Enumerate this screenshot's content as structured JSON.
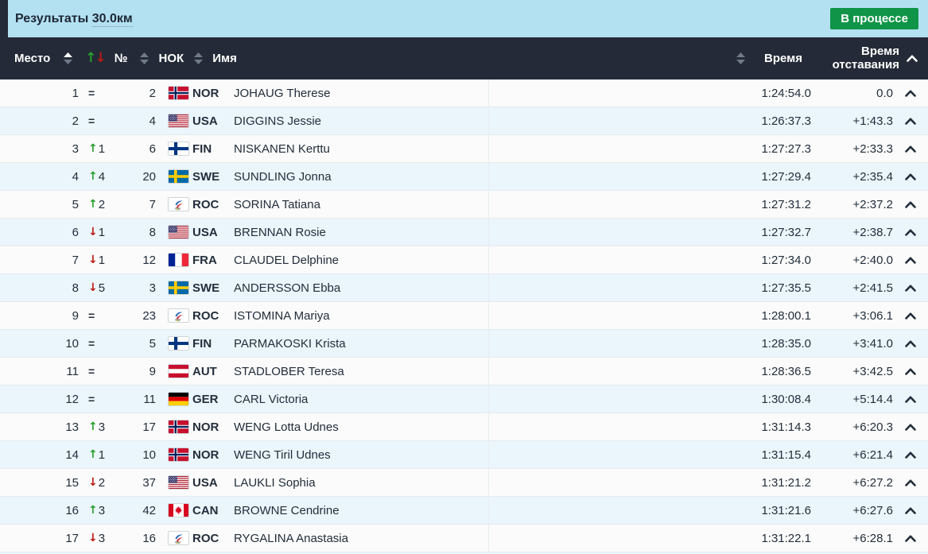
{
  "topbar": {
    "title": "Результаты",
    "distance": "30.0км",
    "status": "В процессе"
  },
  "table": {
    "header": {
      "place": "Место",
      "bib": "№",
      "noc": "НОК",
      "name": "Имя",
      "time": "Время",
      "gap": "Время отставания"
    },
    "rows": [
      {
        "place": "1",
        "change_dir": "same",
        "change_val": "",
        "bib": "2",
        "noc": "NOR",
        "name": "JOHAUG Therese",
        "time": "1:24:54.0",
        "gap": "0.0"
      },
      {
        "place": "2",
        "change_dir": "same",
        "change_val": "",
        "bib": "4",
        "noc": "USA",
        "name": "DIGGINS Jessie",
        "time": "1:26:37.3",
        "gap": "+1:43.3"
      },
      {
        "place": "3",
        "change_dir": "up",
        "change_val": "1",
        "bib": "6",
        "noc": "FIN",
        "name": "NISKANEN Kerttu",
        "time": "1:27:27.3",
        "gap": "+2:33.3"
      },
      {
        "place": "4",
        "change_dir": "up",
        "change_val": "4",
        "bib": "20",
        "noc": "SWE",
        "name": "SUNDLING Jonna",
        "time": "1:27:29.4",
        "gap": "+2:35.4"
      },
      {
        "place": "5",
        "change_dir": "up",
        "change_val": "2",
        "bib": "7",
        "noc": "ROC",
        "name": "SORINA Tatiana",
        "time": "1:27:31.2",
        "gap": "+2:37.2"
      },
      {
        "place": "6",
        "change_dir": "down",
        "change_val": "1",
        "bib": "8",
        "noc": "USA",
        "name": "BRENNAN Rosie",
        "time": "1:27:32.7",
        "gap": "+2:38.7"
      },
      {
        "place": "7",
        "change_dir": "down",
        "change_val": "1",
        "bib": "12",
        "noc": "FRA",
        "name": "CLAUDEL Delphine",
        "time": "1:27:34.0",
        "gap": "+2:40.0"
      },
      {
        "place": "8",
        "change_dir": "down",
        "change_val": "5",
        "bib": "3",
        "noc": "SWE",
        "name": "ANDERSSON Ebba",
        "time": "1:27:35.5",
        "gap": "+2:41.5"
      },
      {
        "place": "9",
        "change_dir": "same",
        "change_val": "",
        "bib": "23",
        "noc": "ROC",
        "name": "ISTOMINA Mariya",
        "time": "1:28:00.1",
        "gap": "+3:06.1"
      },
      {
        "place": "10",
        "change_dir": "same",
        "change_val": "",
        "bib": "5",
        "noc": "FIN",
        "name": "PARMAKOSKI Krista",
        "time": "1:28:35.0",
        "gap": "+3:41.0"
      },
      {
        "place": "11",
        "change_dir": "same",
        "change_val": "",
        "bib": "9",
        "noc": "AUT",
        "name": "STADLOBER Teresa",
        "time": "1:28:36.5",
        "gap": "+3:42.5"
      },
      {
        "place": "12",
        "change_dir": "same",
        "change_val": "",
        "bib": "11",
        "noc": "GER",
        "name": "CARL Victoria",
        "time": "1:30:08.4",
        "gap": "+5:14.4"
      },
      {
        "place": "13",
        "change_dir": "up",
        "change_val": "3",
        "bib": "17",
        "noc": "NOR",
        "name": "WENG Lotta Udnes",
        "time": "1:31:14.3",
        "gap": "+6:20.3"
      },
      {
        "place": "14",
        "change_dir": "up",
        "change_val": "1",
        "bib": "10",
        "noc": "NOR",
        "name": "WENG Tiril Udnes",
        "time": "1:31:15.4",
        "gap": "+6:21.4"
      },
      {
        "place": "15",
        "change_dir": "down",
        "change_val": "2",
        "bib": "37",
        "noc": "USA",
        "name": "LAUKLI Sophia",
        "time": "1:31:21.2",
        "gap": "+6:27.2"
      },
      {
        "place": "16",
        "change_dir": "up",
        "change_val": "3",
        "bib": "42",
        "noc": "CAN",
        "name": "BROWNE Cendrine",
        "time": "1:31:21.6",
        "gap": "+6:27.6"
      },
      {
        "place": "17",
        "change_dir": "down",
        "change_val": "3",
        "bib": "16",
        "noc": "ROC",
        "name": "RYGALINA Anastasia",
        "time": "1:31:22.1",
        "gap": "+6:28.1"
      }
    ]
  },
  "colors": {
    "topbar_bg": "#b3e1f2",
    "header_bg": "#242a37",
    "status_green": "#0f9448",
    "row_bg": "#fafbfa",
    "row_alt_bg": "#ebf5fc",
    "up_green": "#27a02c",
    "down_red": "#bb1a14"
  }
}
